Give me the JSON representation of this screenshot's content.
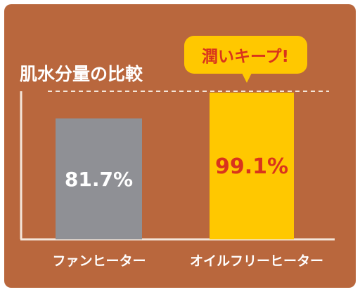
{
  "colors": {
    "background": "#B9673D",
    "axis": "#F4E6DA",
    "bar_fan": "#8F9095",
    "bar_oil": "#FFC800",
    "callout": "#FFC800",
    "value_fan": "#FFFFFF",
    "value_oil": "#D9341C",
    "callout_text": "#D9341C",
    "category_text": "#FFFFFF",
    "title_text": "#FFFFFF"
  },
  "chart_data": {
    "type": "bar",
    "title": "肌水分量の比較",
    "categories": [
      "ファンヒーター",
      "オイルフリーヒーター"
    ],
    "values": [
      81.7,
      99.1
    ],
    "value_labels": [
      "81.7%",
      "99.1%"
    ],
    "ylim": [
      0,
      100
    ],
    "grid": false,
    "reference_line": {
      "value": 100,
      "style": "dashed"
    },
    "annotation": {
      "text": "潤いキープ!",
      "target": "オイルフリーヒーター"
    }
  }
}
